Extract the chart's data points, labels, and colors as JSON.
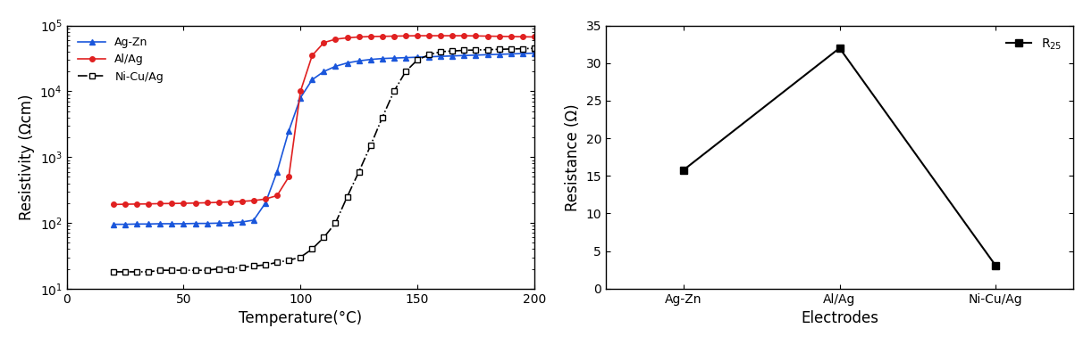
{
  "left": {
    "title": "",
    "xlabel": "Temperature(°C)",
    "ylabel": "Resistivity (Ωcm)",
    "xlim": [
      0,
      200
    ],
    "ylim_log": [
      1,
      5
    ],
    "xticks": [
      0,
      50,
      100,
      150,
      200
    ],
    "series": {
      "AgZn": {
        "label": "Ag-Zn",
        "color": "#1a56db",
        "marker": "^",
        "markersize": 4,
        "x": [
          20,
          25,
          30,
          35,
          40,
          45,
          50,
          55,
          60,
          65,
          70,
          75,
          80,
          85,
          90,
          95,
          100,
          105,
          110,
          115,
          120,
          125,
          130,
          135,
          140,
          145,
          150,
          155,
          160,
          165,
          170,
          175,
          180,
          185,
          190,
          195,
          200
        ],
        "y": [
          95,
          95,
          96,
          96,
          97,
          97,
          97,
          98,
          98,
          99,
          100,
          103,
          110,
          200,
          600,
          2500,
          8000,
          15000,
          20000,
          24000,
          27000,
          29000,
          30500,
          31500,
          32000,
          32500,
          33000,
          33500,
          34000,
          34500,
          35000,
          35500,
          36000,
          36500,
          37000,
          37500,
          38000
        ]
      },
      "AlAg": {
        "label": "Al/Ag",
        "color": "#e02020",
        "marker": "o",
        "markersize": 4,
        "x": [
          20,
          25,
          30,
          35,
          40,
          45,
          50,
          55,
          60,
          65,
          70,
          75,
          80,
          85,
          90,
          95,
          100,
          105,
          110,
          115,
          120,
          125,
          130,
          135,
          140,
          145,
          150,
          155,
          160,
          165,
          170,
          175,
          180,
          185,
          190,
          195,
          200
        ],
        "y": [
          190,
          192,
          193,
          194,
          196,
          197,
          198,
          200,
          202,
          205,
          208,
          212,
          218,
          230,
          260,
          500,
          10000,
          35000,
          55000,
          62000,
          65000,
          67000,
          68000,
          68500,
          69000,
          69500,
          70000,
          70000,
          70000,
          70000,
          70000,
          69500,
          69000,
          68500,
          68000,
          67500,
          67000
        ]
      },
      "NiCuAg": {
        "label": "Ni-Cu/Ag",
        "color": "#000000",
        "marker": "s",
        "markersize": 4,
        "marker_style": "open",
        "x": [
          20,
          25,
          30,
          35,
          40,
          45,
          50,
          55,
          60,
          65,
          70,
          75,
          80,
          85,
          90,
          95,
          100,
          105,
          110,
          115,
          120,
          125,
          130,
          135,
          140,
          145,
          150,
          155,
          160,
          165,
          170,
          175,
          180,
          185,
          190,
          195,
          200
        ],
        "y": [
          18,
          18,
          18,
          18,
          19,
          19,
          19,
          19,
          19,
          20,
          20,
          21,
          22,
          23,
          25,
          27,
          30,
          40,
          60,
          100,
          250,
          600,
          1500,
          4000,
          10000,
          20000,
          30000,
          36000,
          40000,
          41000,
          42000,
          42500,
          43000,
          43500,
          44000,
          44500,
          45000
        ]
      }
    }
  },
  "right": {
    "xlabel": "Electrodes",
    "ylabel": "Resistance (Ω)",
    "ylim": [
      0,
      35
    ],
    "yticks": [
      0,
      5,
      10,
      15,
      20,
      25,
      30,
      35
    ],
    "categories": [
      "Ag-Zn",
      "Al/Ag",
      "Ni-Cu/Ag"
    ],
    "values": [
      15.8,
      32.0,
      3.1
    ],
    "legend_label": "R$_{25}$",
    "color": "#000000",
    "marker": "s",
    "markersize": 6
  },
  "background_color": "#ffffff",
  "font_color": "#000000"
}
